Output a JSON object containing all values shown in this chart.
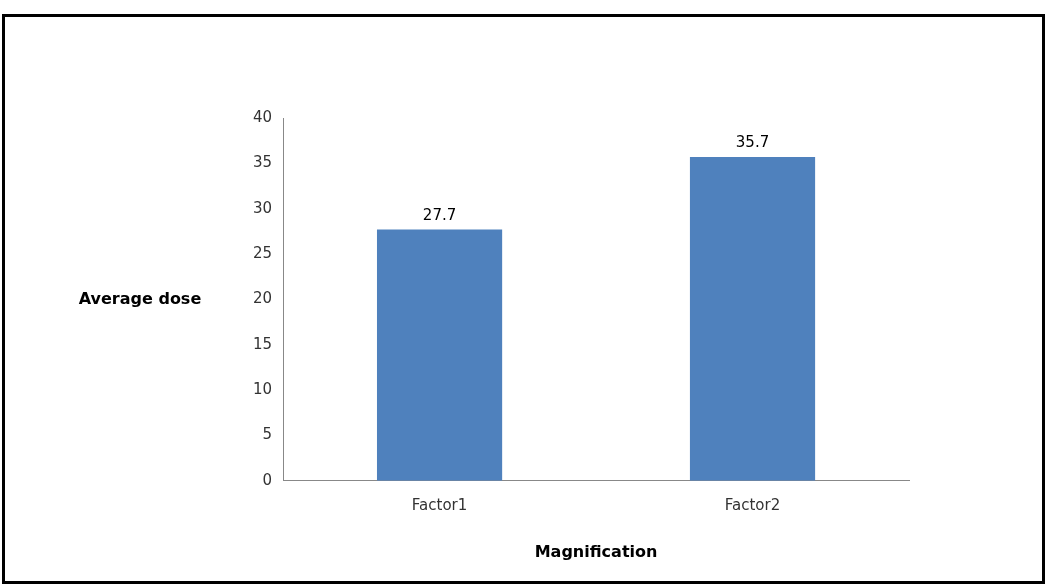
{
  "chart_data": {
    "type": "bar",
    "xlabel": "Magnification",
    "ylabel": "Average dose",
    "categories": [
      "Factor1",
      "Factor2"
    ],
    "values": [
      27.7,
      35.7
    ],
    "color": "#4f81bd",
    "ylim": [
      0,
      40
    ],
    "yticks": [
      0,
      5,
      10,
      15,
      20,
      25,
      30,
      35,
      40
    ],
    "grid": false,
    "legend": false,
    "data_labels": true
  }
}
